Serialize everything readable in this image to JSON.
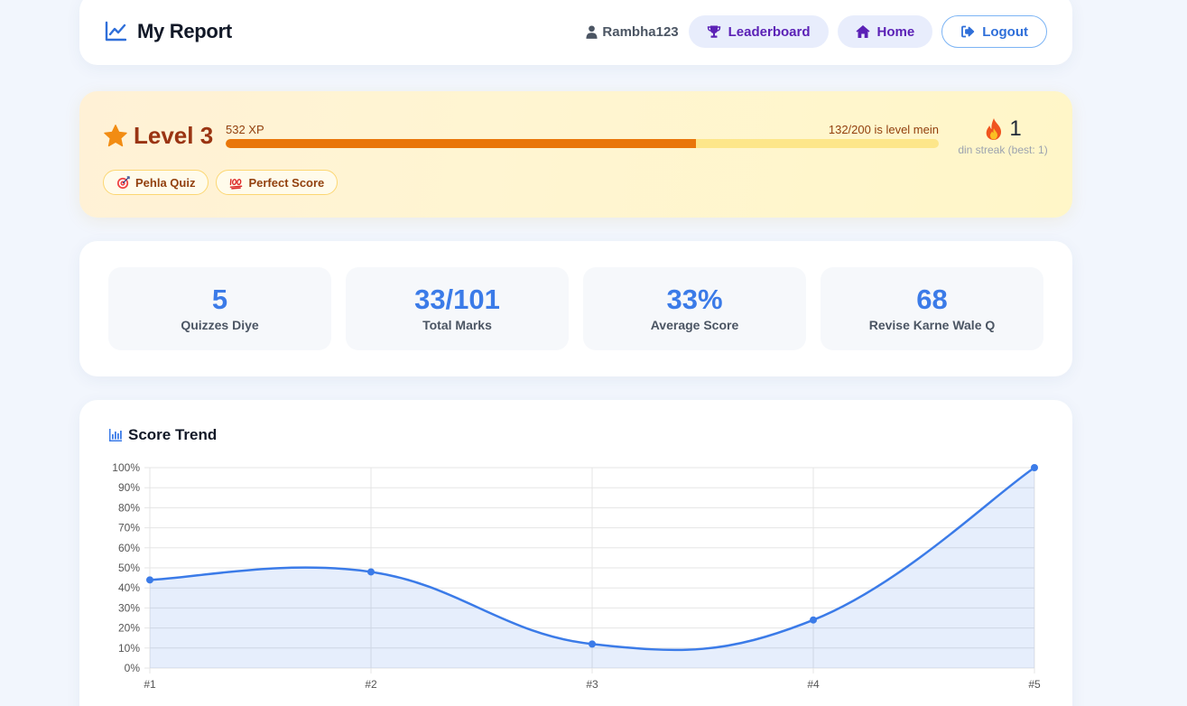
{
  "header": {
    "title": "My Report",
    "username": "Rambha123",
    "nav": {
      "leaderboard": "Leaderboard",
      "home": "Home",
      "logout": "Logout"
    }
  },
  "level": {
    "title": "Level 3",
    "xp": "532 XP",
    "progress_text": "132/200 is level mein",
    "progress_fraction": 0.66,
    "streak_count": "1",
    "streak_label": "din streak (best: 1)",
    "badges": [
      {
        "label": "Pehla Quiz",
        "icon": "target-icon"
      },
      {
        "label": "Perfect Score",
        "icon": "hundred-points-icon"
      }
    ]
  },
  "stats": [
    {
      "value": "5",
      "label": "Quizzes Diye"
    },
    {
      "value": "33/101",
      "label": "Total Marks"
    },
    {
      "value": "33%",
      "label": "Average Score"
    },
    {
      "value": "68",
      "label": "Revise Karne Wale Q"
    }
  ],
  "colors": {
    "accent": "#3b7be8",
    "level_text": "#9a3412",
    "xp_bar_fill": "#e9760a",
    "xp_bar_track": "#fde68a",
    "nav_text": "#5b21b6"
  },
  "chart_title": "Score Trend",
  "chart_data": {
    "type": "line",
    "title": "Score Trend",
    "categories": [
      "#1",
      "#2",
      "#3",
      "#4",
      "#5"
    ],
    "series": [
      {
        "values": [
          44,
          48,
          12,
          24,
          100
        ]
      }
    ],
    "ylim": [
      0,
      100
    ],
    "yticks": [
      "0%",
      "10%",
      "20%",
      "30%",
      "40%",
      "50%",
      "60%",
      "70%",
      "80%",
      "90%",
      "100%"
    ],
    "grid": true,
    "fill": true,
    "smooth": true
  }
}
